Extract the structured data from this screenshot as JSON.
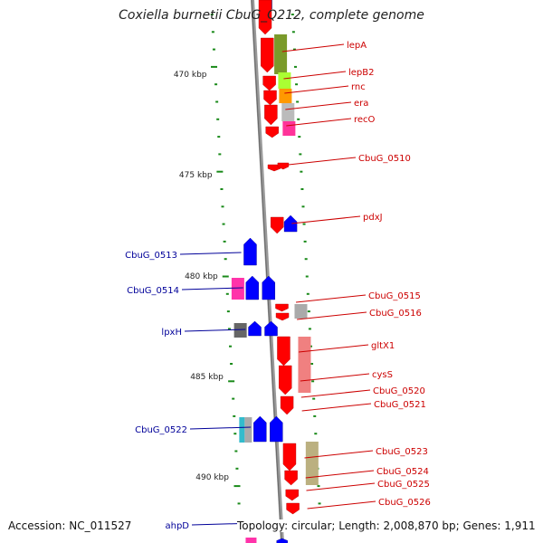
{
  "title": "Coxiella burnetii CbuG_Q212, complete genome",
  "footer": {
    "accession": "Accession: NC_011527",
    "summary": "Topology: circular; Length: 2,008,870 bp; Genes: 1,911"
  },
  "colors": {
    "forward": "#ff0000",
    "reverse": "#0000ff",
    "label_forward": "#cc0000",
    "label_reverse": "#000099",
    "tick": "#1a8a1a",
    "backbone": "#888888"
  },
  "ruler": {
    "labels": [
      "470 kbp",
      "475 kbp",
      "480 kbp",
      "485 kbp",
      "490 kbp"
    ]
  },
  "genes_forward": [
    {
      "label": "lepA"
    },
    {
      "label": "lepB2"
    },
    {
      "label": "rnc"
    },
    {
      "label": "era"
    },
    {
      "label": "recO"
    },
    {
      "label": "CbuG_0510"
    },
    {
      "label": "pdxJ"
    },
    {
      "label": "CbuG_0515"
    },
    {
      "label": "CbuG_0516"
    },
    {
      "label": "gltX1"
    },
    {
      "label": "cysS"
    },
    {
      "label": "CbuG_0520"
    },
    {
      "label": "CbuG_0521"
    },
    {
      "label": "CbuG_0523"
    },
    {
      "label": "CbuG_0524"
    },
    {
      "label": "CbuG_0525"
    },
    {
      "label": "CbuG_0526"
    }
  ],
  "genes_reverse": [
    {
      "label": "CbuG_0513"
    },
    {
      "label": "CbuG_0514"
    },
    {
      "label": "lpxH"
    },
    {
      "label": "CbuG_0522"
    },
    {
      "label": "ahpD"
    }
  ],
  "cog_colors": [
    "#7a9a2a",
    "#aaff33",
    "#ff9900",
    "#bbbbbb",
    "#ff3399",
    "#f08080",
    "#bbb080",
    "#ff33aa",
    "#666666",
    "#33bbcc",
    "#aaaaaa"
  ]
}
